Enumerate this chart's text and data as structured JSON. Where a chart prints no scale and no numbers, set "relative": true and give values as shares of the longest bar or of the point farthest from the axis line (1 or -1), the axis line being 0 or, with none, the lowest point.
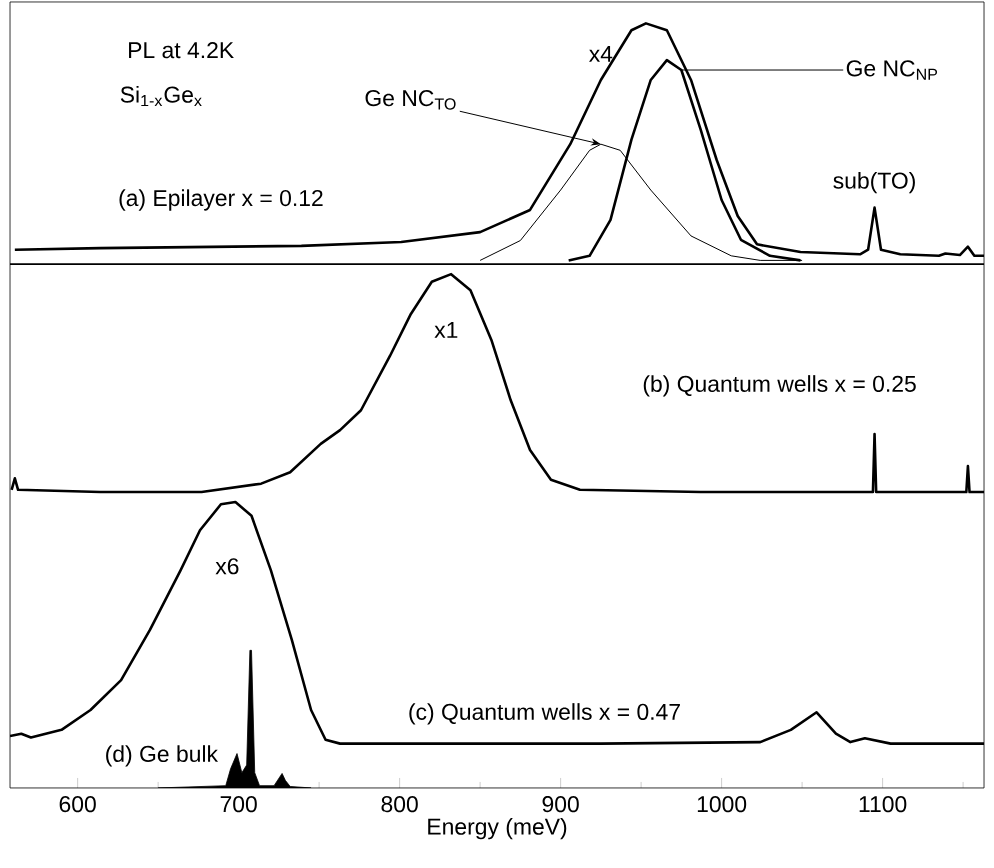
{
  "chart_data": {
    "type": "line",
    "relative": true,
    "xlabel": "Energy (meV)",
    "xlim": [
      558,
      1163
    ],
    "xticks": [
      600,
      {
        "value": 650,
        "label": null
      },
      700,
      {
        "value": 750,
        "label": null
      },
      800,
      {
        "value": 850,
        "label": null
      },
      900,
      {
        "value": 950,
        "label": null
      },
      1000,
      {
        "value": 1050,
        "label": null
      },
      1100,
      {
        "value": 1150,
        "label": null
      }
    ],
    "ref_lines": [
      {
        "axis": "y",
        "value": 0.685,
        "color": "#000000"
      }
    ],
    "annotations": [
      "PL at 4.2K",
      "Si$_{1-x}$Ge$_{x}$",
      "x4",
      "x1",
      "x6",
      {
        "text": "sub(TO)",
        "x": 1095,
        "y": 0.759
      }
    ],
    "series": [
      {
        "name": "(a) Epilayer x = 0.12",
        "color": "#000000",
        "x": [
          561,
          614,
          739,
          801,
          850,
          881,
          906,
          925,
          944,
          953,
          966,
          981,
          997,
          1010,
          1022,
          1049,
          1086,
          1091,
          1095,
          1099,
          1111,
          1135,
          1139,
          1148,
          1153,
          1157,
          1163
        ],
        "values": [
          0.704,
          0.706,
          0.709,
          0.714,
          0.727,
          0.756,
          0.842,
          0.926,
          0.991,
          1.0,
          0.991,
          0.926,
          0.821,
          0.748,
          0.711,
          0.701,
          0.698,
          0.704,
          0.759,
          0.704,
          0.698,
          0.696,
          0.699,
          0.697,
          0.708,
          0.696,
          0.696
        ]
      },
      {
        "name": "Ge NC$_{TO}$",
        "color": "#000000",
        "x": [
          850,
          875,
          900,
          918,
          925,
          937,
          956,
          981,
          1006,
          1024,
          1050
        ],
        "values": [
          0.69,
          0.716,
          0.782,
          0.834,
          0.842,
          0.834,
          0.782,
          0.722,
          0.696,
          0.69,
          0.69
        ]
      },
      {
        "name": "Ge NC$_{NP}$",
        "color": "#000000",
        "x": [
          905,
          918,
          931,
          944,
          956,
          966,
          975,
          987,
          1000,
          1012,
          1030,
          1049
        ],
        "values": [
          0.69,
          0.696,
          0.743,
          0.848,
          0.926,
          0.952,
          0.939,
          0.861,
          0.769,
          0.717,
          0.696,
          0.69
        ]
      },
      {
        "name": "(b) Quantum wells x = 0.25",
        "color": "#000000",
        "x": [
          559,
          561,
          563,
          614,
          677,
          714,
          732,
          751,
          763,
          776,
          794,
          807,
          820,
          832,
          844,
          857,
          869,
          881,
          894,
          912,
          987,
          1086,
          1094,
          1095,
          1096,
          1152,
          1153,
          1154,
          1163
        ],
        "values": [
          0.39,
          0.405,
          0.39,
          0.387,
          0.387,
          0.398,
          0.413,
          0.45,
          0.468,
          0.494,
          0.565,
          0.62,
          0.662,
          0.672,
          0.651,
          0.586,
          0.507,
          0.442,
          0.403,
          0.39,
          0.387,
          0.387,
          0.387,
          0.463,
          0.387,
          0.387,
          0.421,
          0.387,
          0.387
        ]
      },
      {
        "name": "(c) Quantum wells x = 0.47",
        "color": "#000000",
        "x": [
          558,
          565,
          571,
          590,
          608,
          627,
          645,
          664,
          676,
          689,
          698,
          708,
          720,
          733,
          745,
          754,
          763,
          925,
          1024,
          1043,
          1059,
          1071,
          1080,
          1089,
          1105,
          1163
        ],
        "values": [
          0.068,
          0.071,
          0.066,
          0.076,
          0.102,
          0.141,
          0.207,
          0.285,
          0.337,
          0.371,
          0.374,
          0.356,
          0.285,
          0.194,
          0.102,
          0.063,
          0.058,
          0.058,
          0.06,
          0.076,
          0.099,
          0.071,
          0.06,
          0.065,
          0.058,
          0.058
        ]
      },
      {
        "name": "(d) Ge bulk",
        "type": "area",
        "color": "#000000",
        "x": [
          650,
          692,
          695,
          699,
          702,
          705,
          707,
          708,
          710,
          713,
          722,
          727,
          729,
          732,
          745
        ],
        "values": [
          0,
          0.003,
          0.025,
          0.045,
          0.02,
          0.03,
          0.18,
          0.18,
          0.02,
          0.003,
          0.003,
          0.019,
          0.01,
          0.002,
          0
        ]
      }
    ]
  }
}
